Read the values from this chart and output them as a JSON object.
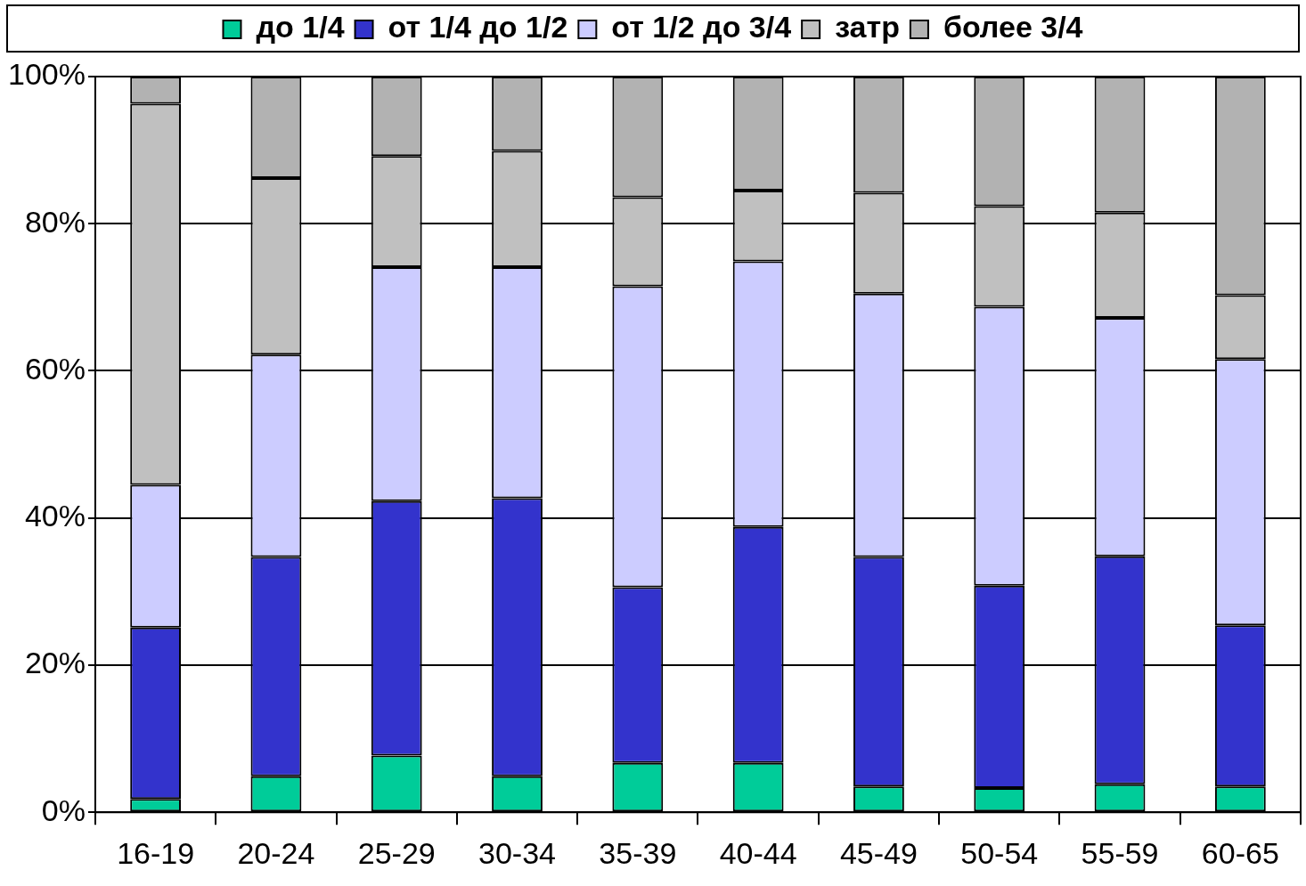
{
  "chart_data": {
    "type": "bar",
    "stacked": true,
    "categories": [
      "16-19",
      "20-24",
      "25-29",
      "30-34",
      "35-39",
      "40-44",
      "45-49",
      "50-54",
      "55-59",
      "60-65"
    ],
    "series": [
      {
        "name": "до 1/4",
        "color": "#00cc99",
        "values": [
          1.8,
          4.9,
          7.7,
          4.9,
          6.7,
          6.7,
          3.5,
          3.3,
          3.8,
          3.5
        ]
      },
      {
        "name": "от 1/4 до 1/2",
        "color": "#3333cc",
        "values": [
          23.3,
          29.8,
          34.6,
          37.8,
          23.9,
          32.1,
          31.2,
          27.5,
          31.0,
          21.9
        ]
      },
      {
        "name": "от 1/2 до 3/4",
        "color": "#ccccff",
        "values": [
          19.4,
          27.5,
          31.8,
          31.4,
          40.9,
          36.1,
          35.8,
          37.9,
          32.4,
          36.2
        ]
      },
      {
        "name": "затр",
        "color": "#c0c0c0",
        "values": [
          51.8,
          24.0,
          15.1,
          15.8,
          12.1,
          9.6,
          13.7,
          13.7,
          14.3,
          8.7
        ]
      },
      {
        "name": "более 3/4",
        "color": "#b2b2b2",
        "values": [
          3.7,
          13.8,
          10.8,
          10.1,
          16.4,
          15.5,
          15.8,
          17.6,
          18.5,
          29.7
        ]
      }
    ],
    "ylim": [
      0,
      100
    ],
    "yticks": [
      {
        "value": 0,
        "label": "0%"
      },
      {
        "value": 20,
        "label": "20%"
      },
      {
        "value": 40,
        "label": "40%"
      },
      {
        "value": 60,
        "label": "60%"
      },
      {
        "value": 80,
        "label": "80%"
      },
      {
        "value": 100,
        "label": "100%"
      }
    ],
    "grid": "y",
    "legend": "top"
  }
}
